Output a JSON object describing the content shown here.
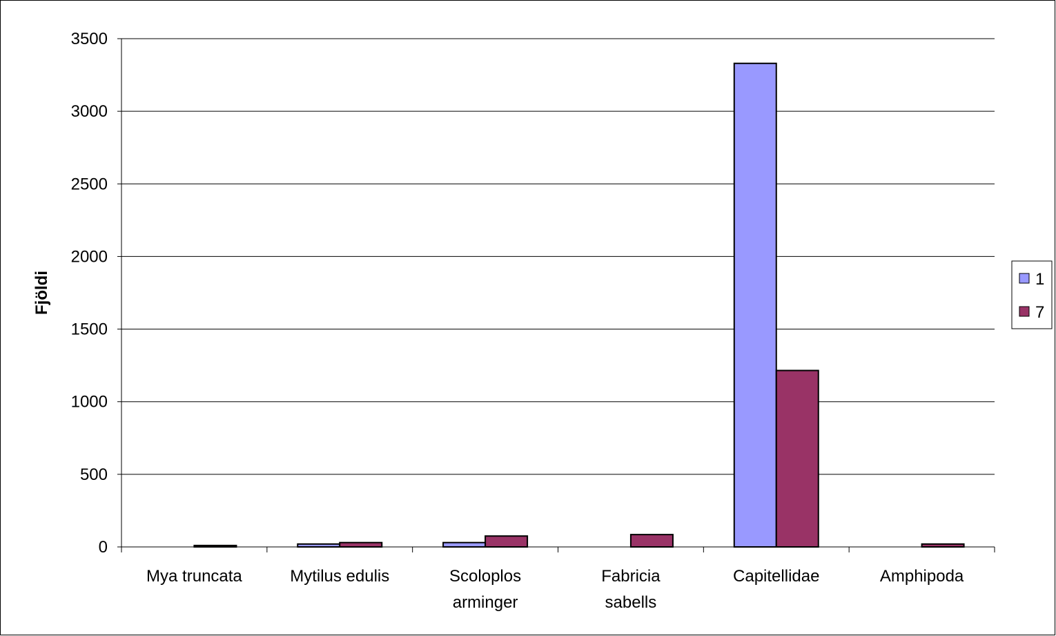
{
  "chart_data": {
    "type": "bar",
    "ylabel": "Fjöldi",
    "ylim": [
      0,
      3500
    ],
    "yticks": [
      0,
      500,
      1000,
      1500,
      2000,
      2500,
      3000,
      3500
    ],
    "ytick_labels": [
      "0",
      "500",
      "1000",
      "1500",
      "2000",
      "2500",
      "3000",
      "3500"
    ],
    "categories": [
      [
        "Mya truncata"
      ],
      [
        "Mytilus edulis"
      ],
      [
        "Scoloplos",
        "arminger"
      ],
      [
        "Fabricia",
        "sabells"
      ],
      [
        "Capitellidae"
      ],
      [
        "Amphipoda"
      ]
    ],
    "series": [
      {
        "name": "1",
        "color": "#9999ff",
        "values": [
          0,
          20,
          30,
          0,
          3330,
          0
        ]
      },
      {
        "name": "7",
        "color": "#993366",
        "values": [
          10,
          30,
          75,
          85,
          1215,
          20
        ]
      }
    ],
    "grid": true,
    "legend": "right"
  }
}
